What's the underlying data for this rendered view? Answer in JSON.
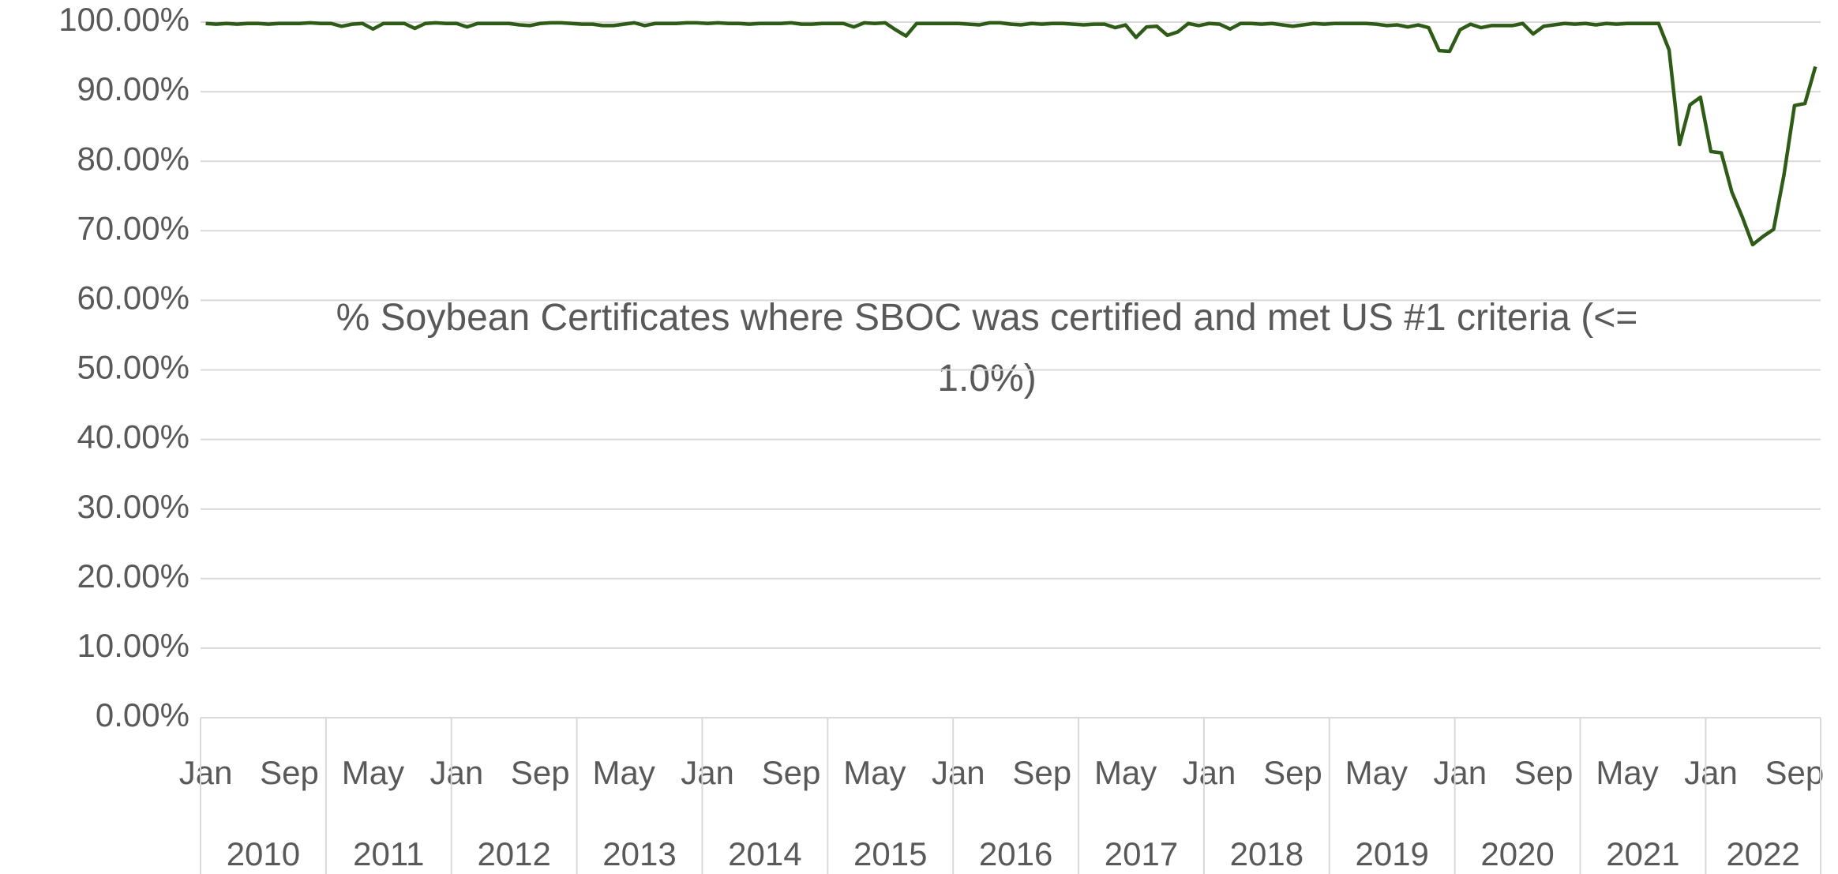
{
  "chart_data": {
    "type": "line",
    "title": "% Soybean Certificates where SBOC was certified and met US #1 criteria  (<= 1.0%)",
    "categories": [
      "Jan",
      null,
      null,
      null,
      null,
      null,
      null,
      null,
      "Sep",
      null,
      null,
      null,
      null,
      null,
      null,
      null,
      "May",
      null,
      null,
      null,
      null,
      null,
      null,
      null,
      "Jan",
      null,
      null,
      null,
      null,
      null,
      null,
      null,
      "Sep",
      null,
      null,
      null,
      null,
      null,
      null,
      null,
      "May",
      null,
      null,
      null,
      null,
      null,
      null,
      null,
      "Jan",
      null,
      null,
      null,
      null,
      null,
      null,
      null,
      "Sep",
      null,
      null,
      null,
      null,
      null,
      null,
      null,
      "May",
      null,
      null,
      null,
      null,
      null,
      null,
      null,
      "Jan",
      null,
      null,
      null,
      null,
      null,
      null,
      null,
      "Sep",
      null,
      null,
      null,
      null,
      null,
      null,
      null,
      "May",
      null,
      null,
      null,
      null,
      null,
      null,
      null,
      "Jan",
      null,
      null,
      null,
      null,
      null,
      null,
      null,
      "Sep",
      null,
      null,
      null,
      null,
      null,
      null,
      null,
      "May",
      null,
      null,
      null,
      null,
      null,
      null,
      null,
      "Jan",
      null,
      null,
      null,
      null,
      null,
      null,
      null,
      "Sep",
      null,
      null,
      null,
      null,
      null,
      null,
      null,
      "May",
      null,
      null,
      null,
      null,
      null,
      null,
      null,
      "Jan",
      null,
      null,
      null,
      null,
      null,
      null,
      null,
      "Sep",
      null,
      null
    ],
    "years": [
      "2010",
      "2011",
      "2012",
      "2013",
      "2014",
      "2015",
      "2016",
      "2017",
      "2018",
      "2019",
      "2020",
      "2021",
      "2022"
    ],
    "series": [
      {
        "color": "#2e5c17",
        "values": [
          99.8,
          99.7,
          99.8,
          99.7,
          99.8,
          99.8,
          99.7,
          99.8,
          99.8,
          99.8,
          99.9,
          99.8,
          99.8,
          99.4,
          99.7,
          99.8,
          99.0,
          99.8,
          99.8,
          99.8,
          99.1,
          99.8,
          99.9,
          99.8,
          99.8,
          99.3,
          99.8,
          99.8,
          99.8,
          99.8,
          99.6,
          99.5,
          99.8,
          99.9,
          99.9,
          99.8,
          99.7,
          99.7,
          99.5,
          99.5,
          99.7,
          99.9,
          99.5,
          99.8,
          99.8,
          99.8,
          99.9,
          99.9,
          99.8,
          99.9,
          99.8,
          99.8,
          99.7,
          99.8,
          99.8,
          99.8,
          99.9,
          99.7,
          99.7,
          99.8,
          99.8,
          99.8,
          99.3,
          99.9,
          99.8,
          99.9,
          98.9,
          98.0,
          99.8,
          99.8,
          99.8,
          99.8,
          99.8,
          99.7,
          99.6,
          99.9,
          99.9,
          99.7,
          99.6,
          99.8,
          99.7,
          99.8,
          99.8,
          99.7,
          99.6,
          99.7,
          99.7,
          99.2,
          99.6,
          97.8,
          99.3,
          99.4,
          98.1,
          98.6,
          99.8,
          99.5,
          99.8,
          99.7,
          99.0,
          99.8,
          99.8,
          99.7,
          99.8,
          99.6,
          99.4,
          99.6,
          99.8,
          99.7,
          99.8,
          99.8,
          99.8,
          99.8,
          99.7,
          99.5,
          99.6,
          99.3,
          99.6,
          99.2,
          95.9,
          95.8,
          98.9,
          99.7,
          99.2,
          99.5,
          99.5,
          99.5,
          99.8,
          98.3,
          99.4,
          99.6,
          99.8,
          99.7,
          99.8,
          99.6,
          99.8,
          99.7,
          99.8,
          99.8,
          99.8,
          99.8,
          96.0,
          82.4,
          88.1,
          89.2,
          81.4,
          81.2,
          75.6,
          72.0,
          68.0,
          69.2,
          70.2,
          78.1,
          88.0,
          88.3,
          93.6
        ]
      }
    ],
    "ylim": [
      0,
      100
    ],
    "yticks": [
      {
        "value": 0,
        "label": "0.00%"
      },
      {
        "value": 10,
        "label": "10.00%"
      },
      {
        "value": 20,
        "label": "20.00%"
      },
      {
        "value": 30,
        "label": "30.00%"
      },
      {
        "value": 40,
        "label": "40.00%"
      },
      {
        "value": 50,
        "label": "50.00%"
      },
      {
        "value": 60,
        "label": "60.00%"
      },
      {
        "value": 70,
        "label": "70.00%"
      },
      {
        "value": 80,
        "label": "80.00%"
      },
      {
        "value": 90,
        "label": "90.00%"
      },
      {
        "value": 100,
        "label": "100.00%"
      }
    ],
    "grid": true
  }
}
